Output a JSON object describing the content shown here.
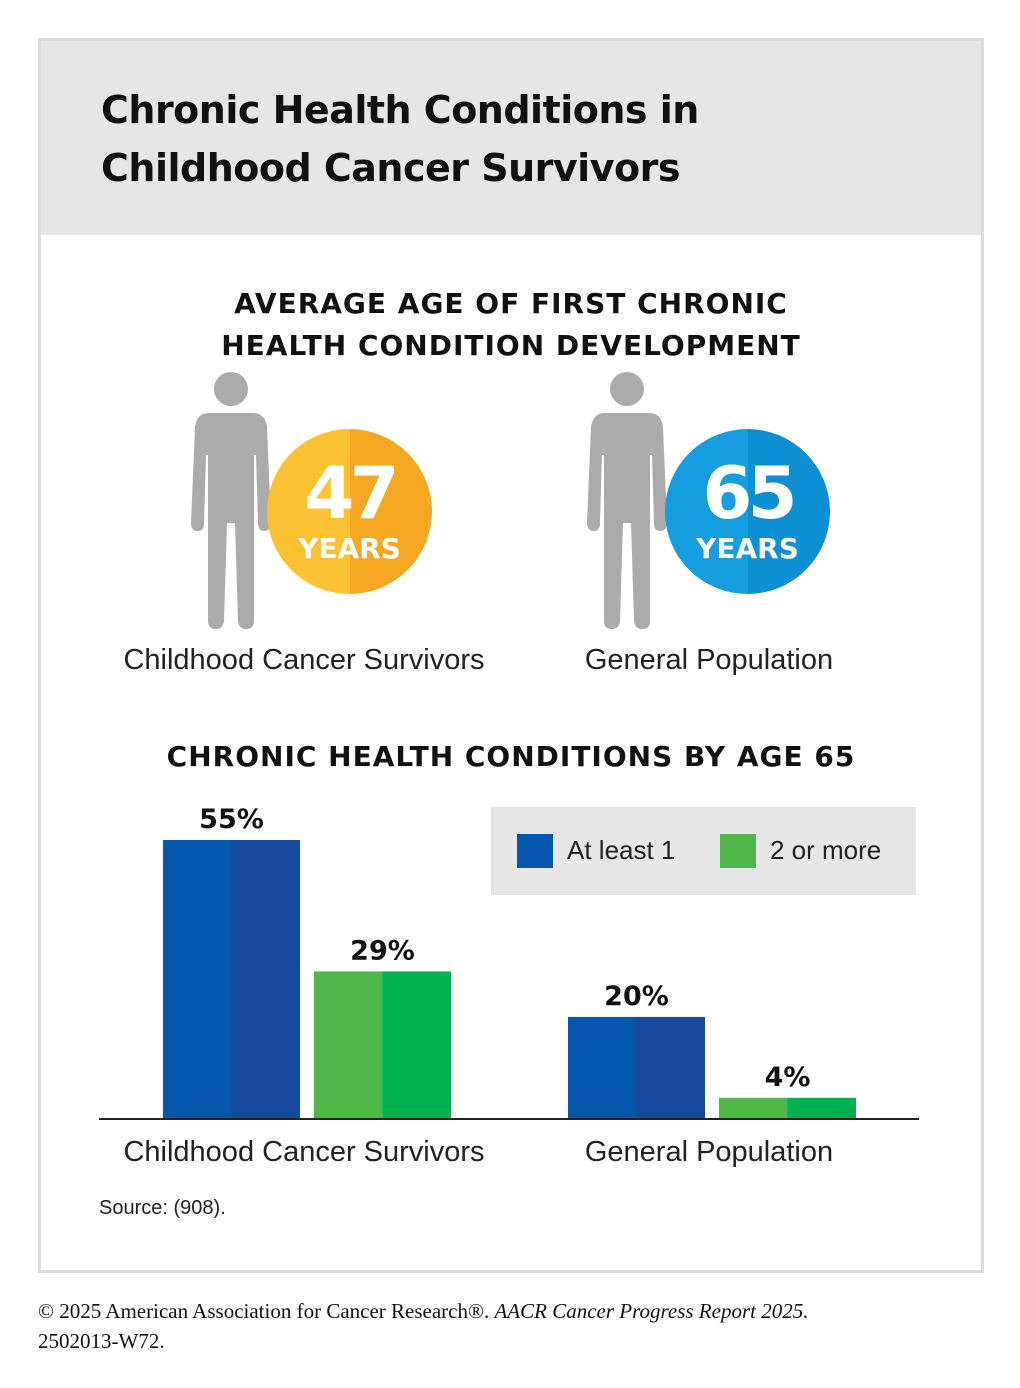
{
  "title_line1": "Chronic Health Conditions in",
  "title_line2": "Childhood Cancer Survivors",
  "section1": {
    "heading_line1": "AVERAGE AGE OF FIRST CHRONIC",
    "heading_line2": "HEALTH CONDITION DEVELOPMENT",
    "stats": [
      {
        "value": "47",
        "unit": "YEARS",
        "label": "Childhood Cancer Survivors",
        "icon": "person-icon",
        "colors": [
          "#FCC232",
          "#F7A823"
        ]
      },
      {
        "value": "65",
        "unit": "YEARS",
        "label": "General Population",
        "icon": "person-icon",
        "colors": [
          "#149EDF",
          "#0C8FD3"
        ]
      }
    ]
  },
  "chart_data": {
    "type": "bar",
    "title": "CHRONIC HEALTH CONDITIONS BY AGE 65",
    "categories": [
      "Childhood Cancer Survivors",
      "General Population"
    ],
    "series": [
      {
        "name": "At least 1",
        "values": [
          55,
          20
        ],
        "labels": [
          "55%",
          "20%"
        ],
        "colors": [
          "#0557AE",
          "#174A9E"
        ]
      },
      {
        "name": "2 or more",
        "values": [
          29,
          4
        ],
        "labels": [
          "29%",
          "4%"
        ],
        "colors": [
          "#4DB848",
          "#00B14F"
        ]
      }
    ],
    "unit": "%",
    "ylim": [
      0,
      60
    ],
    "legend": "top-right",
    "grid": false
  },
  "source": "Source: (908).",
  "copyright_main": "© 2025 American Association for Cancer Research®. ",
  "copyright_italic": "AACR Cancer Progress Report 2025.",
  "copyright_line2": "2502013-W72.",
  "colors": {
    "figure_gray": "#ABABAB",
    "header_bg": "#E6E6E6",
    "legend_bg": "#E6E6E6",
    "axis": "#222222"
  }
}
